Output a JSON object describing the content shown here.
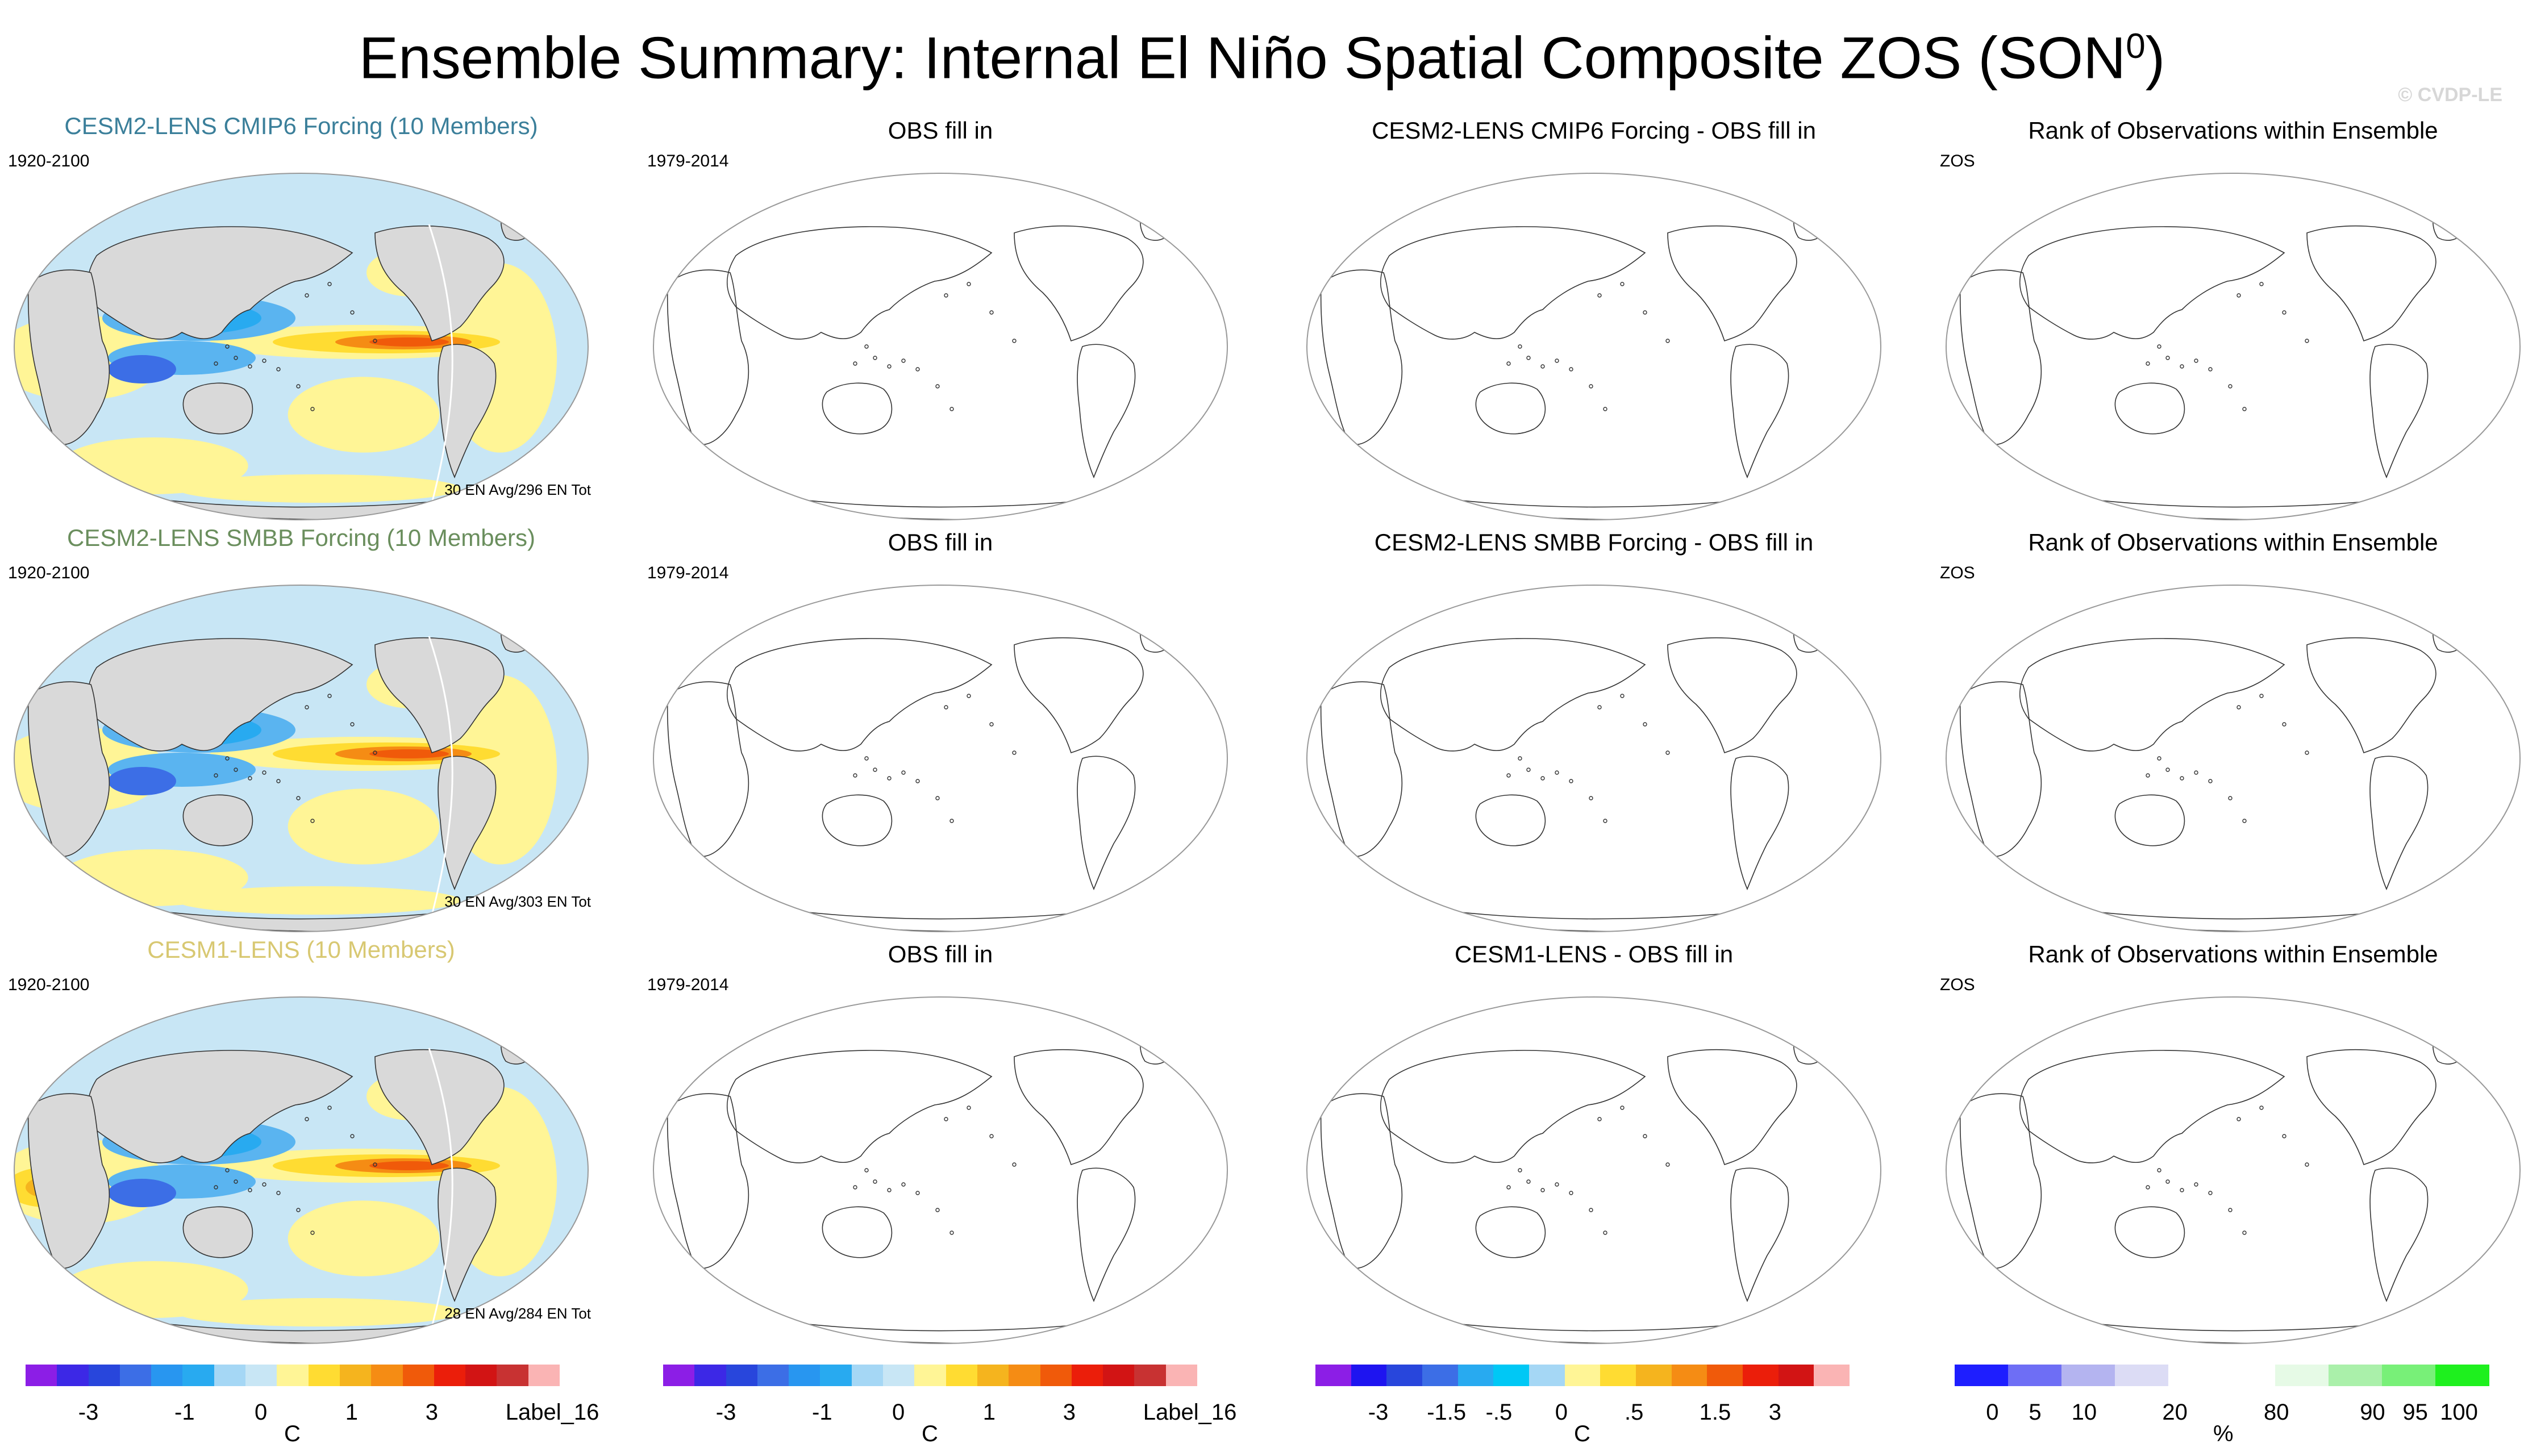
{
  "title": "Ensemble Summary: Internal El Niño Spatial Composite ZOS (SON",
  "title_sup": "0",
  "title_close": ")",
  "credit": "© CVDP-LE",
  "rows": [
    {
      "panels": [
        {
          "title": "CESM2-LENS CMIP6 Forcing (10 Members)",
          "title_color": "#3b7f9a",
          "corner": "1920-2100",
          "foot": "30 EN Avg/296 EN Tot",
          "filled": true,
          "variant": 0
        },
        {
          "title": "OBS fill in",
          "title_color": "#000000",
          "corner": "1979-2014",
          "foot": "",
          "filled": false
        },
        {
          "title": "CESM2-LENS CMIP6 Forcing - OBS fill in",
          "title_color": "#000000",
          "corner": "",
          "foot": "",
          "filled": false
        },
        {
          "title": "Rank of Observations within Ensemble",
          "title_color": "#000000",
          "corner": "ZOS",
          "foot": "",
          "filled": false
        }
      ]
    },
    {
      "panels": [
        {
          "title": "CESM2-LENS SMBB Forcing (10 Members)",
          "title_color": "#6a8e5d",
          "corner": "1920-2100",
          "foot": "30 EN Avg/303 EN Tot",
          "filled": true,
          "variant": 1
        },
        {
          "title": "OBS fill in",
          "title_color": "#000000",
          "corner": "1979-2014",
          "foot": "",
          "filled": false
        },
        {
          "title": "CESM2-LENS SMBB Forcing - OBS fill in",
          "title_color": "#000000",
          "corner": "",
          "foot": "",
          "filled": false
        },
        {
          "title": "Rank of Observations within Ensemble",
          "title_color": "#000000",
          "corner": "ZOS",
          "foot": "",
          "filled": false
        }
      ]
    },
    {
      "panels": [
        {
          "title": "CESM1-LENS (10 Members)",
          "title_color": "#d8c872",
          "corner": "1920-2100",
          "foot": "28 EN Avg/284 EN Tot",
          "filled": true,
          "variant": 2
        },
        {
          "title": "OBS fill in",
          "title_color": "#000000",
          "corner": "1979-2014",
          "foot": "",
          "filled": false
        },
        {
          "title": "CESM1-LENS - OBS fill in",
          "title_color": "#000000",
          "corner": "",
          "foot": "",
          "filled": false
        },
        {
          "title": "Rank of Observations within Ensemble",
          "title_color": "#000000",
          "corner": "ZOS",
          "foot": "",
          "filled": false
        }
      ]
    }
  ],
  "colorbars": [
    {
      "unit": "C",
      "colors": [
        "#8c1ee6",
        "#3c28e6",
        "#2846dc",
        "#3c6ee6",
        "#2896f0",
        "#28aaf0",
        "#a5d7f5",
        "#c8e6f5",
        "#fff596",
        "#ffdc32",
        "#f5b41e",
        "#f58c14",
        "#f05a0a",
        "#eb1e0a",
        "#d21414",
        "#c83232",
        "#fab4b4"
      ],
      "ticks": [
        "-3",
        "-1",
        "0",
        "1",
        "3",
        "Label_16"
      ]
    },
    {
      "unit": "C",
      "colors": [
        "#8c1ee6",
        "#3c28e6",
        "#2846dc",
        "#3c6ee6",
        "#2896f0",
        "#28aaf0",
        "#a5d7f5",
        "#c8e6f5",
        "#fff596",
        "#ffdc32",
        "#f5b41e",
        "#f58c14",
        "#f05a0a",
        "#eb1e0a",
        "#d21414",
        "#c83232",
        "#fab4b4"
      ],
      "ticks": [
        "-3",
        "-1",
        "0",
        "1",
        "3",
        "Label_16"
      ]
    },
    {
      "unit": "C",
      "colors": [
        "#8c1ee6",
        "#1e14f0",
        "#2846dc",
        "#3c6ee6",
        "#28aaf0",
        "#00c8f5",
        "#a5d7f5",
        "#fff596",
        "#ffdc32",
        "#f5b41e",
        "#f58c14",
        "#f05a0a",
        "#eb1e0a",
        "#d21414",
        "#fab4b4"
      ],
      "ticks": [
        "-3",
        "-1.5",
        "-.5",
        "0",
        ".5",
        "1.5",
        "3"
      ]
    },
    {
      "unit": "%",
      "colors": [
        "#1e1eff",
        "#6e6ef5",
        "#b4b4f0",
        "#dcdcf5",
        "#ffffff",
        "#ffffff",
        "#e6fae6",
        "#aaf0aa",
        "#78f078",
        "#1ef01e"
      ],
      "ticks": [
        "0",
        "5",
        "10",
        "20",
        "80",
        "90",
        "95",
        "100"
      ]
    }
  ]
}
